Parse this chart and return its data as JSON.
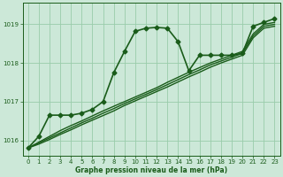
{
  "title": "Graphe pression niveau de la mer (hPa)",
  "background_color": "#cce8d8",
  "grid_color": "#99ccaa",
  "line_color": "#1a5c1a",
  "text_color": "#1a5c1a",
  "ylim": [
    1015.6,
    1019.55
  ],
  "yticks": [
    1016,
    1017,
    1018,
    1019
  ],
  "xlim": [
    -0.5,
    23.5
  ],
  "xticks": [
    0,
    1,
    2,
    3,
    4,
    5,
    6,
    7,
    8,
    9,
    10,
    11,
    12,
    13,
    14,
    15,
    16,
    17,
    18,
    19,
    20,
    21,
    22,
    23
  ],
  "series": [
    {
      "x": [
        0,
        1,
        2,
        3,
        4,
        5,
        6,
        7,
        8,
        9,
        10,
        11,
        12,
        13,
        14,
        15,
        16,
        17,
        18,
        19,
        20,
        21,
        22,
        23
      ],
      "y": [
        1015.8,
        1016.1,
        1016.65,
        1016.65,
        1016.65,
        1016.7,
        1016.8,
        1017.0,
        1017.75,
        1018.3,
        1018.82,
        1018.9,
        1018.92,
        1018.9,
        1018.55,
        1017.8,
        1018.2,
        1018.2,
        1018.2,
        1018.2,
        1018.25,
        1018.95,
        1019.05,
        1019.15
      ],
      "marker": "D",
      "markersize": 2.5,
      "linewidth": 1.2
    },
    {
      "x": [
        0,
        1,
        2,
        3,
        4,
        5,
        6,
        7,
        8,
        9,
        10,
        11,
        12,
        13,
        14,
        15,
        16,
        17,
        18,
        19,
        20,
        21,
        22,
        23
      ],
      "y": [
        1015.8,
        1015.95,
        1016.1,
        1016.25,
        1016.38,
        1016.5,
        1016.63,
        1016.76,
        1016.88,
        1017.0,
        1017.12,
        1017.24,
        1017.36,
        1017.5,
        1017.63,
        1017.76,
        1017.88,
        1018.0,
        1018.1,
        1018.2,
        1018.3,
        1018.75,
        1019.0,
        1019.05
      ],
      "marker": null,
      "markersize": 0,
      "linewidth": 1.0
    },
    {
      "x": [
        0,
        1,
        2,
        3,
        4,
        5,
        6,
        7,
        8,
        9,
        10,
        11,
        12,
        13,
        14,
        15,
        16,
        17,
        18,
        19,
        20,
        21,
        22,
        23
      ],
      "y": [
        1015.8,
        1015.93,
        1016.06,
        1016.19,
        1016.32,
        1016.45,
        1016.57,
        1016.7,
        1016.82,
        1016.95,
        1017.07,
        1017.19,
        1017.31,
        1017.44,
        1017.57,
        1017.7,
        1017.82,
        1017.95,
        1018.05,
        1018.15,
        1018.25,
        1018.7,
        1018.95,
        1019.0
      ],
      "marker": null,
      "markersize": 0,
      "linewidth": 1.0
    },
    {
      "x": [
        0,
        1,
        2,
        3,
        4,
        5,
        6,
        7,
        8,
        9,
        10,
        11,
        12,
        13,
        14,
        15,
        16,
        17,
        18,
        19,
        20,
        21,
        22,
        23
      ],
      "y": [
        1015.8,
        1015.9,
        1016.02,
        1016.15,
        1016.27,
        1016.4,
        1016.52,
        1016.64,
        1016.76,
        1016.9,
        1017.02,
        1017.14,
        1017.26,
        1017.38,
        1017.51,
        1017.64,
        1017.76,
        1017.89,
        1018.0,
        1018.1,
        1018.2,
        1018.65,
        1018.9,
        1018.95
      ],
      "marker": null,
      "markersize": 0,
      "linewidth": 1.0
    }
  ]
}
